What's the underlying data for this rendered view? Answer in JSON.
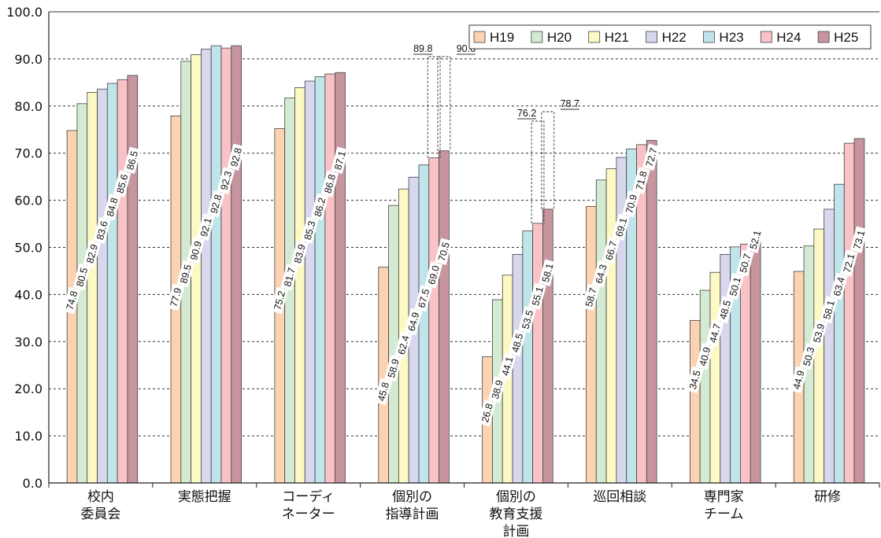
{
  "chart_data": {
    "type": "bar",
    "categories": [
      [
        "校内",
        "委員会"
      ],
      [
        "実態把握"
      ],
      [
        "コーディ",
        "ネーター"
      ],
      [
        "個別の",
        "指導計画"
      ],
      [
        "個別の",
        "教育支援",
        "計画"
      ],
      [
        "巡回相談"
      ],
      [
        "専門家",
        "チーム"
      ],
      [
        "研修"
      ]
    ],
    "series": [
      {
        "name": "H19",
        "color": "#fbd2b2",
        "values": [
          74.8,
          77.9,
          75.2,
          45.8,
          26.8,
          58.7,
          34.5,
          44.9
        ]
      },
      {
        "name": "H20",
        "color": "#d5ead2",
        "values": [
          80.5,
          89.5,
          81.7,
          58.9,
          38.9,
          64.3,
          40.9,
          50.3
        ]
      },
      {
        "name": "H21",
        "color": "#fdf9c4",
        "values": [
          82.9,
          90.9,
          83.9,
          62.4,
          44.1,
          66.7,
          44.7,
          53.9
        ]
      },
      {
        "name": "H22",
        "color": "#d7d8ee",
        "values": [
          83.6,
          92.1,
          85.3,
          64.9,
          48.5,
          69.1,
          48.5,
          58.1
        ]
      },
      {
        "name": "H23",
        "color": "#bfe4ea",
        "values": [
          84.8,
          92.8,
          86.2,
          67.5,
          53.5,
          70.9,
          50.1,
          63.4
        ]
      },
      {
        "name": "H24",
        "color": "#f8c2c6",
        "values": [
          85.6,
          92.3,
          86.8,
          69.0,
          55.1,
          71.8,
          50.7,
          72.1
        ]
      },
      {
        "name": "H25",
        "color": "#c7959f",
        "values": [
          86.5,
          92.8,
          87.1,
          70.5,
          58.1,
          72.7,
          52.1,
          73.1
        ]
      }
    ],
    "ylim": [
      0,
      100
    ],
    "yticks": [
      "0.0",
      "10.0",
      "20.0",
      "30.0",
      "40.0",
      "50.0",
      "60.0",
      "70.0",
      "80.0",
      "90.0",
      "100.0"
    ],
    "grid": true,
    "legend": "top-right",
    "callouts": [
      {
        "category": 3,
        "series": 5,
        "value": "89.8"
      },
      {
        "category": 3,
        "series": 6,
        "value": "90.6"
      },
      {
        "category": 4,
        "series": 5,
        "value": "76.2"
      },
      {
        "category": 4,
        "series": 6,
        "value": "78.7"
      }
    ]
  }
}
